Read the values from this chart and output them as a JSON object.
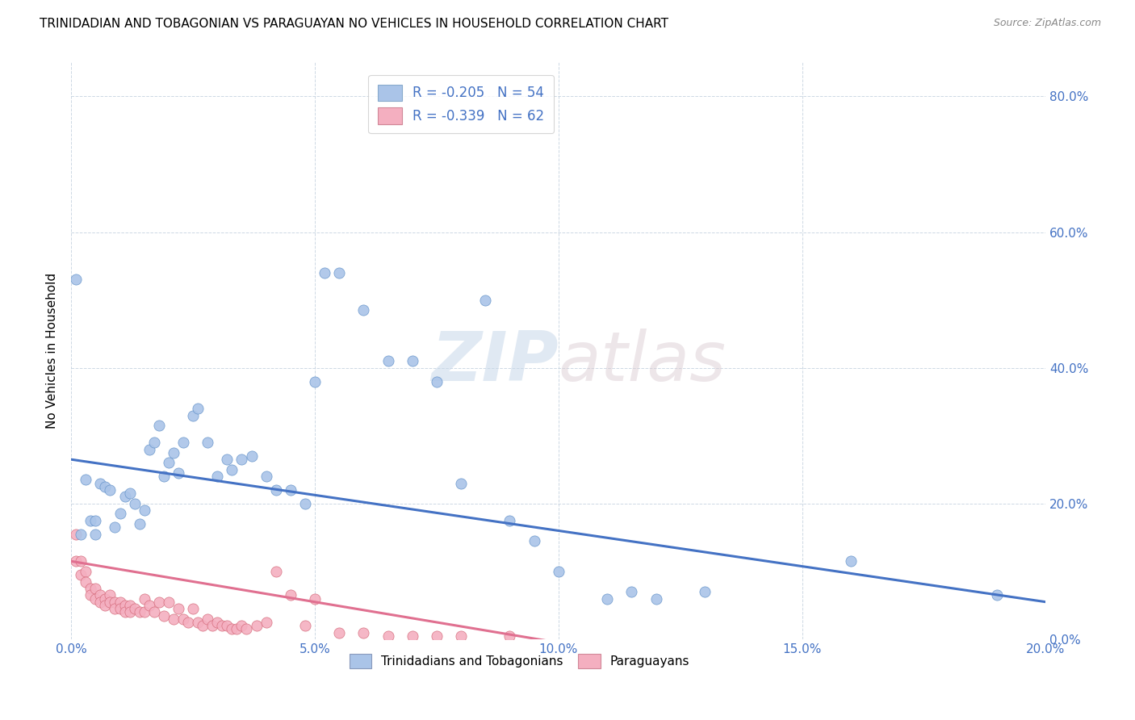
{
  "title": "TRINIDADIAN AND TOBAGONIAN VS PARAGUAYAN NO VEHICLES IN HOUSEHOLD CORRELATION CHART",
  "source": "Source: ZipAtlas.com",
  "ylabel": "No Vehicles in Household",
  "xmin": 0.0,
  "xmax": 0.2,
  "ymin": 0.0,
  "ymax": 0.85,
  "xticks": [
    0.0,
    0.05,
    0.1,
    0.15,
    0.2
  ],
  "yticks": [
    0.0,
    0.2,
    0.4,
    0.6,
    0.8
  ],
  "blue_color": "#aac4e8",
  "pink_color": "#f4afc0",
  "blue_line_color": "#4472c4",
  "pink_line_color": "#e07090",
  "watermark_zip": "ZIP",
  "watermark_atlas": "atlas",
  "legend_blue_label": "R = -0.205   N = 54",
  "legend_pink_label": "R = -0.339   N = 62",
  "bottom_legend_blue": "Trinidadians and Tobagonians",
  "bottom_legend_pink": "Paraguayans",
  "blue_line_x0": 0.0,
  "blue_line_x1": 0.2,
  "blue_line_y0": 0.265,
  "blue_line_y1": 0.055,
  "pink_line_x0": 0.0,
  "pink_line_x1": 0.1,
  "pink_line_y0": 0.115,
  "pink_line_y1": -0.005,
  "blue_x": [
    0.001,
    0.002,
    0.003,
    0.004,
    0.005,
    0.005,
    0.006,
    0.007,
    0.008,
    0.009,
    0.01,
    0.011,
    0.012,
    0.013,
    0.014,
    0.015,
    0.016,
    0.017,
    0.018,
    0.019,
    0.02,
    0.021,
    0.022,
    0.023,
    0.025,
    0.026,
    0.028,
    0.03,
    0.032,
    0.033,
    0.035,
    0.037,
    0.04,
    0.042,
    0.045,
    0.048,
    0.05,
    0.052,
    0.055,
    0.06,
    0.065,
    0.07,
    0.075,
    0.08,
    0.085,
    0.09,
    0.095,
    0.1,
    0.11,
    0.115,
    0.12,
    0.13,
    0.16,
    0.19
  ],
  "blue_y": [
    0.53,
    0.155,
    0.235,
    0.175,
    0.175,
    0.155,
    0.23,
    0.225,
    0.22,
    0.165,
    0.185,
    0.21,
    0.215,
    0.2,
    0.17,
    0.19,
    0.28,
    0.29,
    0.315,
    0.24,
    0.26,
    0.275,
    0.245,
    0.29,
    0.33,
    0.34,
    0.29,
    0.24,
    0.265,
    0.25,
    0.265,
    0.27,
    0.24,
    0.22,
    0.22,
    0.2,
    0.38,
    0.54,
    0.54,
    0.485,
    0.41,
    0.41,
    0.38,
    0.23,
    0.5,
    0.175,
    0.145,
    0.1,
    0.06,
    0.07,
    0.06,
    0.07,
    0.115,
    0.065
  ],
  "pink_x": [
    0.001,
    0.001,
    0.002,
    0.002,
    0.003,
    0.003,
    0.004,
    0.004,
    0.005,
    0.005,
    0.006,
    0.006,
    0.007,
    0.007,
    0.008,
    0.008,
    0.009,
    0.009,
    0.01,
    0.01,
    0.011,
    0.011,
    0.012,
    0.012,
    0.013,
    0.014,
    0.015,
    0.015,
    0.016,
    0.017,
    0.018,
    0.019,
    0.02,
    0.021,
    0.022,
    0.023,
    0.024,
    0.025,
    0.026,
    0.027,
    0.028,
    0.029,
    0.03,
    0.031,
    0.032,
    0.033,
    0.034,
    0.035,
    0.036,
    0.038,
    0.04,
    0.042,
    0.045,
    0.048,
    0.05,
    0.055,
    0.06,
    0.065,
    0.07,
    0.075,
    0.08,
    0.09
  ],
  "pink_y": [
    0.155,
    0.115,
    0.115,
    0.095,
    0.1,
    0.085,
    0.075,
    0.065,
    0.075,
    0.06,
    0.065,
    0.055,
    0.06,
    0.05,
    0.065,
    0.055,
    0.055,
    0.045,
    0.055,
    0.045,
    0.05,
    0.04,
    0.05,
    0.04,
    0.045,
    0.04,
    0.06,
    0.04,
    0.05,
    0.04,
    0.055,
    0.035,
    0.055,
    0.03,
    0.045,
    0.03,
    0.025,
    0.045,
    0.025,
    0.02,
    0.03,
    0.02,
    0.025,
    0.02,
    0.02,
    0.015,
    0.015,
    0.02,
    0.015,
    0.02,
    0.025,
    0.1,
    0.065,
    0.02,
    0.06,
    0.01,
    0.01,
    0.005,
    0.005,
    0.005,
    0.005,
    0.005
  ]
}
